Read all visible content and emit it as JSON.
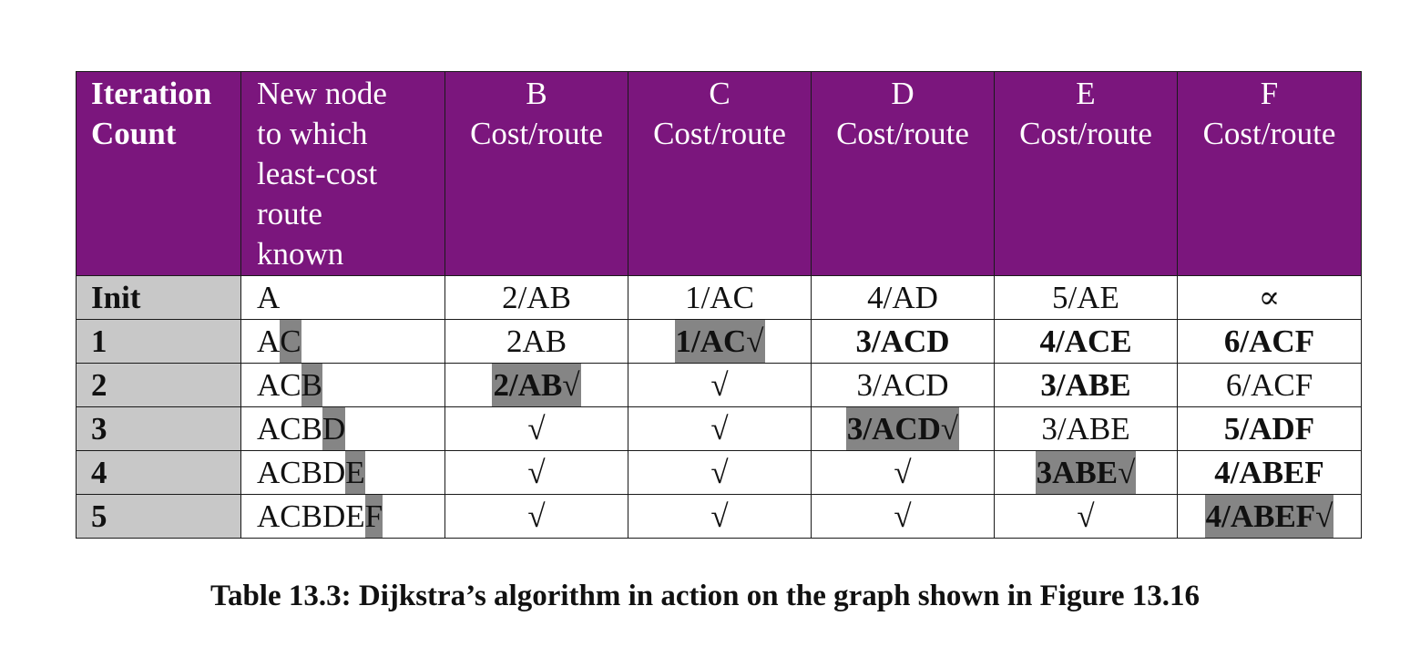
{
  "table": {
    "headers": [
      {
        "lines": [
          "Iteration",
          "Count"
        ]
      },
      {
        "lines": [
          "New node",
          "to which",
          "least-cost",
          "route",
          "known"
        ]
      },
      {
        "lines": [
          "B",
          "Cost/route"
        ]
      },
      {
        "lines": [
          "C",
          "Cost/route"
        ]
      },
      {
        "lines": [
          "D",
          "Cost/route"
        ]
      },
      {
        "lines": [
          "E",
          "Cost/route"
        ]
      },
      {
        "lines": [
          "F",
          "Cost/route"
        ]
      }
    ],
    "rows": [
      {
        "iteration": "Init",
        "new_node": {
          "base": "A",
          "added": ""
        },
        "costs": [
          {
            "text": "2/AB",
            "bold": false,
            "highlight": false
          },
          {
            "text": "1/AC",
            "bold": false,
            "highlight": false
          },
          {
            "text": "4/AD",
            "bold": false,
            "highlight": false
          },
          {
            "text": "5/AE",
            "bold": false,
            "highlight": false
          },
          {
            "text": "∝",
            "bold": false,
            "highlight": false
          }
        ]
      },
      {
        "iteration": "1",
        "new_node": {
          "base": "A",
          "added": "C"
        },
        "costs": [
          {
            "text": "2AB",
            "bold": false,
            "highlight": false
          },
          {
            "text": "1/AC√",
            "bold": true,
            "highlight": true
          },
          {
            "text": "3/ACD",
            "bold": true,
            "highlight": false
          },
          {
            "text": "4/ACE",
            "bold": true,
            "highlight": false
          },
          {
            "text": "6/ACF",
            "bold": true,
            "highlight": false
          }
        ]
      },
      {
        "iteration": "2",
        "new_node": {
          "base": "AC",
          "added": "B"
        },
        "costs": [
          {
            "text": "2/AB√",
            "bold": true,
            "highlight": true
          },
          {
            "text": "√",
            "bold": false,
            "highlight": false
          },
          {
            "text": "3/ACD",
            "bold": false,
            "highlight": false
          },
          {
            "text": "3/ABE",
            "bold": true,
            "highlight": false
          },
          {
            "text": "6/ACF",
            "bold": false,
            "highlight": false
          }
        ]
      },
      {
        "iteration": "3",
        "new_node": {
          "base": "ACB",
          "added": "D"
        },
        "costs": [
          {
            "text": "√",
            "bold": false,
            "highlight": false
          },
          {
            "text": "√",
            "bold": false,
            "highlight": false
          },
          {
            "text": "3/ACD√",
            "bold": true,
            "highlight": true
          },
          {
            "text": "3/ABE",
            "bold": false,
            "highlight": false
          },
          {
            "text": "5/ADF",
            "bold": true,
            "highlight": false
          }
        ]
      },
      {
        "iteration": "4",
        "new_node": {
          "base": "ACBD",
          "added": "E"
        },
        "costs": [
          {
            "text": "√",
            "bold": false,
            "highlight": false
          },
          {
            "text": "√",
            "bold": false,
            "highlight": false
          },
          {
            "text": "√",
            "bold": false,
            "highlight": false
          },
          {
            "text": "3ABE√",
            "bold": true,
            "highlight": true
          },
          {
            "text": "4/ABEF",
            "bold": true,
            "highlight": false
          }
        ]
      },
      {
        "iteration": "5",
        "new_node": {
          "base": "ACBDE",
          "added": "F"
        },
        "costs": [
          {
            "text": "√",
            "bold": false,
            "highlight": false
          },
          {
            "text": "√",
            "bold": false,
            "highlight": false
          },
          {
            "text": "√",
            "bold": false,
            "highlight": false
          },
          {
            "text": "√",
            "bold": false,
            "highlight": false
          },
          {
            "text": "4/ABEF√",
            "bold": true,
            "highlight": true
          }
        ]
      }
    ]
  },
  "caption": "Table 13.3: Dijkstra’s algorithm in action on the graph shown in Figure 13.16",
  "colors": {
    "header_background": "#7b167d",
    "header_text": "#ffffff",
    "iteration_column_background": "#c8c8c8",
    "highlight": "#858585"
  }
}
